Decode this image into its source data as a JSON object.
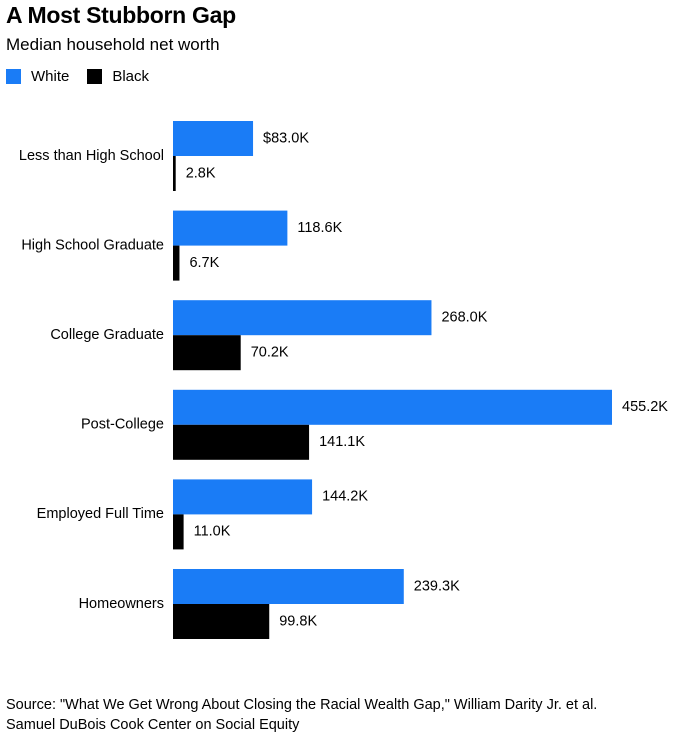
{
  "header": {
    "title": "A Most Stubborn Gap",
    "subtitle": "Median household net worth"
  },
  "legend": [
    {
      "label": "White",
      "color": "#1a7cf6"
    },
    {
      "label": "Black",
      "color": "#000000"
    }
  ],
  "chart_data": {
    "type": "bar",
    "orientation": "horizontal",
    "title": "A Most Stubborn Gap",
    "subtitle": "Median household net worth",
    "categories": [
      "Less than High School",
      "High School Graduate",
      "College Graduate",
      "Post-College",
      "Employed Full Time",
      "Homeowners"
    ],
    "series": [
      {
        "name": "White",
        "color": "#1a7cf6",
        "values": [
          83.0,
          118.6,
          268.0,
          455.2,
          144.2,
          239.3
        ],
        "labels": [
          "$83.0K",
          "118.6K",
          "268.0K",
          "455.2K",
          "144.2K",
          "239.3K"
        ]
      },
      {
        "name": "Black",
        "color": "#000000",
        "values": [
          2.8,
          6.7,
          70.2,
          141.1,
          11.0,
          99.8
        ],
        "labels": [
          "2.8K",
          "6.7K",
          "70.2K",
          "141.1K",
          "11.0K",
          "99.8K"
        ]
      }
    ],
    "xlim": [
      0,
      455.2
    ],
    "grid": false,
    "legend_position": "top-left"
  },
  "footer": {
    "source_line1": "Source: \"What We Get Wrong About Closing the Racial Wealth Gap,\" William Darity Jr. et al.",
    "source_line2": "Samuel DuBois Cook Center on Social Equity"
  }
}
